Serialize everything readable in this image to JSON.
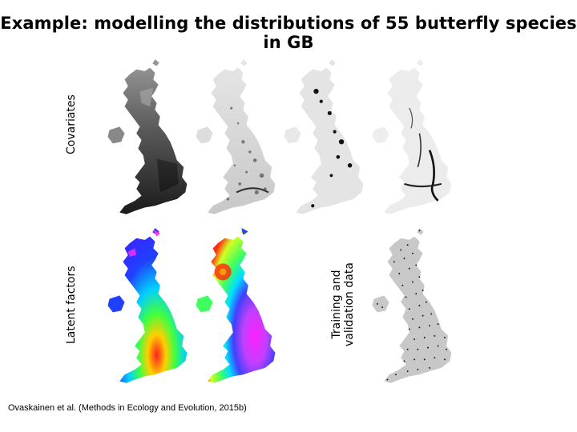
{
  "slide": {
    "title": "Example: modelling the distributions of 55 butterfly species in GB",
    "row_label_covariates": "Covariates",
    "row_label_latent": "Latent factors",
    "label_training_line1": "Training and",
    "label_training_line2": "validation data",
    "citation": "Ovaskainen et al. (Methods in Ecology and Evolution, 2015b)"
  },
  "maps": {
    "covariates": [
      "grayscale-dark",
      "grayscale-light-speckled",
      "grayscale-sparse-dark",
      "grayscale-river-lines"
    ],
    "latent_factors": [
      "rainbow-factor-1",
      "rainbow-factor-2"
    ],
    "training": [
      "sampling-points"
    ]
  },
  "colors": {
    "background": "#ffffff",
    "text": "#000000"
  }
}
